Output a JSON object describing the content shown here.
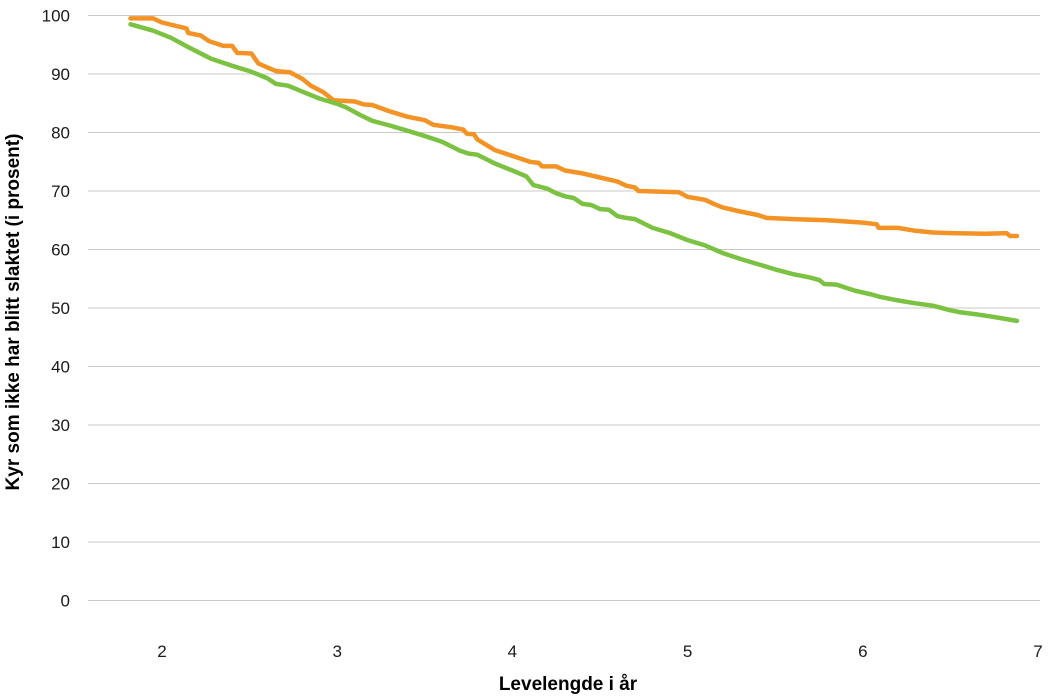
{
  "chart_data": {
    "type": "line",
    "title": "",
    "xlabel": "Levelengde i år",
    "ylabel": "Kyr som ikke har blitt slaktet (i prosent)",
    "xlim": [
      1.57,
      7
    ],
    "ylim": [
      0,
      100
    ],
    "xticks": [
      2,
      3,
      4,
      5,
      6,
      7
    ],
    "yticks": [
      0,
      10,
      20,
      30,
      40,
      50,
      60,
      70,
      80,
      90,
      100
    ],
    "grid": "horizontal",
    "legend": "none",
    "series": [
      {
        "color": "#f39325",
        "points": [
          [
            1.82,
            99.5
          ],
          [
            1.95,
            99.5
          ],
          [
            2.0,
            98.8
          ],
          [
            2.14,
            97.8
          ],
          [
            2.15,
            97.0
          ],
          [
            2.22,
            96.6
          ],
          [
            2.27,
            95.6
          ],
          [
            2.35,
            94.8
          ],
          [
            2.4,
            94.8
          ],
          [
            2.43,
            93.6
          ],
          [
            2.51,
            93.5
          ],
          [
            2.55,
            91.8
          ],
          [
            2.61,
            91.0
          ],
          [
            2.65,
            90.5
          ],
          [
            2.73,
            90.3
          ],
          [
            2.8,
            89.2
          ],
          [
            2.85,
            88.0
          ],
          [
            2.92,
            86.9
          ],
          [
            2.98,
            85.5
          ],
          [
            3.1,
            85.3
          ],
          [
            3.15,
            84.8
          ],
          [
            3.2,
            84.7
          ],
          [
            3.3,
            83.6
          ],
          [
            3.4,
            82.7
          ],
          [
            3.5,
            82.1
          ],
          [
            3.55,
            81.3
          ],
          [
            3.65,
            80.9
          ],
          [
            3.72,
            80.5
          ],
          [
            3.74,
            79.8
          ],
          [
            3.78,
            79.7
          ],
          [
            3.8,
            78.8
          ],
          [
            3.9,
            77.0
          ],
          [
            4.0,
            76.0
          ],
          [
            4.1,
            75.0
          ],
          [
            4.15,
            74.8
          ],
          [
            4.17,
            74.2
          ],
          [
            4.25,
            74.2
          ],
          [
            4.3,
            73.5
          ],
          [
            4.4,
            73.0
          ],
          [
            4.5,
            72.3
          ],
          [
            4.6,
            71.6
          ],
          [
            4.65,
            70.9
          ],
          [
            4.7,
            70.6
          ],
          [
            4.72,
            70.0
          ],
          [
            4.95,
            69.8
          ],
          [
            5.0,
            69.0
          ],
          [
            5.1,
            68.5
          ],
          [
            5.15,
            67.8
          ],
          [
            5.2,
            67.2
          ],
          [
            5.3,
            66.5
          ],
          [
            5.4,
            65.9
          ],
          [
            5.45,
            65.4
          ],
          [
            5.6,
            65.2
          ],
          [
            5.8,
            65.0
          ],
          [
            6.0,
            64.6
          ],
          [
            6.08,
            64.3
          ],
          [
            6.09,
            63.7
          ],
          [
            6.2,
            63.7
          ],
          [
            6.3,
            63.2
          ],
          [
            6.4,
            62.9
          ],
          [
            6.5,
            62.8
          ],
          [
            6.7,
            62.7
          ],
          [
            6.82,
            62.8
          ],
          [
            6.84,
            62.3
          ],
          [
            6.88,
            62.3
          ]
        ]
      },
      {
        "color": "#7cc242",
        "points": [
          [
            1.82,
            98.5
          ],
          [
            1.95,
            97.4
          ],
          [
            2.05,
            96.2
          ],
          [
            2.15,
            94.6
          ],
          [
            2.28,
            92.6
          ],
          [
            2.4,
            91.4
          ],
          [
            2.5,
            90.5
          ],
          [
            2.6,
            89.3
          ],
          [
            2.65,
            88.3
          ],
          [
            2.72,
            88.0
          ],
          [
            2.8,
            87.0
          ],
          [
            2.9,
            85.8
          ],
          [
            3.0,
            84.9
          ],
          [
            3.05,
            84.3
          ],
          [
            3.13,
            83.0
          ],
          [
            3.2,
            82.0
          ],
          [
            3.3,
            81.2
          ],
          [
            3.4,
            80.3
          ],
          [
            3.5,
            79.4
          ],
          [
            3.6,
            78.4
          ],
          [
            3.7,
            76.9
          ],
          [
            3.75,
            76.4
          ],
          [
            3.8,
            76.2
          ],
          [
            3.9,
            74.7
          ],
          [
            4.0,
            73.5
          ],
          [
            4.08,
            72.5
          ],
          [
            4.12,
            71.0
          ],
          [
            4.2,
            70.4
          ],
          [
            4.25,
            69.6
          ],
          [
            4.3,
            69.1
          ],
          [
            4.35,
            68.8
          ],
          [
            4.4,
            67.8
          ],
          [
            4.45,
            67.6
          ],
          [
            4.5,
            66.9
          ],
          [
            4.55,
            66.8
          ],
          [
            4.6,
            65.7
          ],
          [
            4.65,
            65.4
          ],
          [
            4.7,
            65.2
          ],
          [
            4.8,
            63.7
          ],
          [
            4.9,
            62.8
          ],
          [
            5.0,
            61.6
          ],
          [
            5.1,
            60.7
          ],
          [
            5.2,
            59.4
          ],
          [
            5.3,
            58.4
          ],
          [
            5.4,
            57.5
          ],
          [
            5.5,
            56.6
          ],
          [
            5.6,
            55.8
          ],
          [
            5.7,
            55.2
          ],
          [
            5.75,
            54.8
          ],
          [
            5.78,
            54.1
          ],
          [
            5.85,
            54.0
          ],
          [
            5.95,
            53.0
          ],
          [
            6.05,
            52.3
          ],
          [
            6.1,
            51.9
          ],
          [
            6.2,
            51.3
          ],
          [
            6.3,
            50.8
          ],
          [
            6.4,
            50.4
          ],
          [
            6.5,
            49.6
          ],
          [
            6.55,
            49.3
          ],
          [
            6.65,
            48.9
          ],
          [
            6.72,
            48.6
          ],
          [
            6.8,
            48.2
          ],
          [
            6.88,
            47.8
          ]
        ]
      }
    ]
  }
}
